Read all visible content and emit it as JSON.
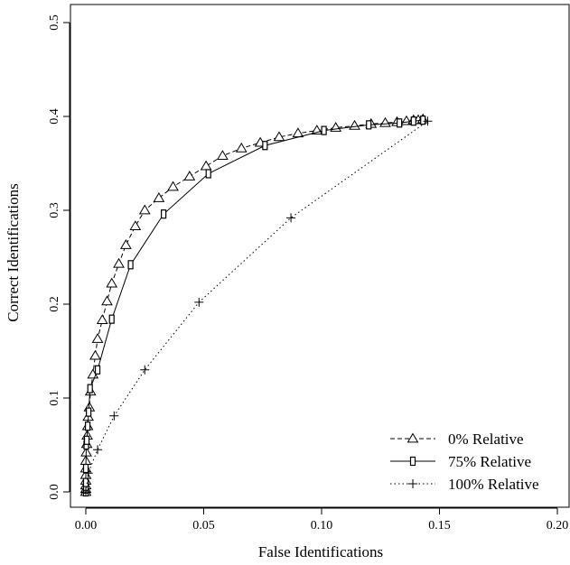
{
  "chart_data": {
    "type": "line",
    "title": "",
    "xlabel": "False Identifications",
    "ylabel": "Correct Identifications",
    "xlim": [
      0.0,
      0.2
    ],
    "ylim": [
      0.0,
      0.5
    ],
    "xticks": [
      "0.00",
      "0.05",
      "0.10",
      "0.15",
      "0.20"
    ],
    "yticks": [
      "0.0",
      "0.1",
      "0.2",
      "0.3",
      "0.4",
      "0.5"
    ],
    "grid": false,
    "legend_position": "bottom-right",
    "series": [
      {
        "name": "0% Relative",
        "marker": "triangle-icon",
        "line_style": "dashed",
        "x": [
          0.0,
          0.0,
          0.0,
          0.0,
          0.0,
          0.0,
          0.0,
          0.0002,
          0.0004,
          0.0006,
          0.0008,
          0.001,
          0.0015,
          0.002,
          0.003,
          0.004,
          0.005,
          0.007,
          0.009,
          0.011,
          0.014,
          0.017,
          0.021,
          0.025,
          0.031,
          0.037,
          0.044,
          0.051,
          0.058,
          0.066,
          0.074,
          0.082,
          0.09,
          0.098,
          0.106,
          0.114,
          0.121,
          0.127,
          0.132,
          0.136,
          0.139,
          0.141,
          0.143
        ],
        "y": [
          0.0,
          0.003,
          0.007,
          0.012,
          0.018,
          0.025,
          0.033,
          0.042,
          0.051,
          0.06,
          0.07,
          0.08,
          0.09,
          0.107,
          0.125,
          0.145,
          0.163,
          0.183,
          0.203,
          0.222,
          0.243,
          0.263,
          0.283,
          0.3,
          0.313,
          0.325,
          0.336,
          0.347,
          0.358,
          0.366,
          0.372,
          0.378,
          0.382,
          0.385,
          0.388,
          0.39,
          0.392,
          0.393,
          0.394,
          0.395,
          0.396,
          0.396,
          0.397
        ]
      },
      {
        "name": "75% Relative",
        "marker": "square-icon",
        "line_style": "solid",
        "x": [
          0.0,
          0.0,
          0.0,
          0.0,
          0.0,
          0.0002,
          0.0004,
          0.0008,
          0.0012,
          0.0018,
          0.005,
          0.011,
          0.019,
          0.033,
          0.052,
          0.076,
          0.101,
          0.12,
          0.133,
          0.139,
          0.143
        ],
        "y": [
          0.0,
          0.003,
          0.006,
          0.01,
          0.025,
          0.05,
          0.055,
          0.07,
          0.085,
          0.11,
          0.13,
          0.184,
          0.242,
          0.296,
          0.339,
          0.369,
          0.385,
          0.391,
          0.393,
          0.395,
          0.396
        ]
      },
      {
        "name": "100% Relative",
        "marker": "plus-icon",
        "line_style": "dotted",
        "x": [
          0.0,
          0.001,
          0.005,
          0.012,
          0.025,
          0.048,
          0.087,
          0.145
        ],
        "y": [
          0.0,
          0.02,
          0.045,
          0.081,
          0.13,
          0.202,
          0.292,
          0.395
        ]
      }
    ]
  }
}
